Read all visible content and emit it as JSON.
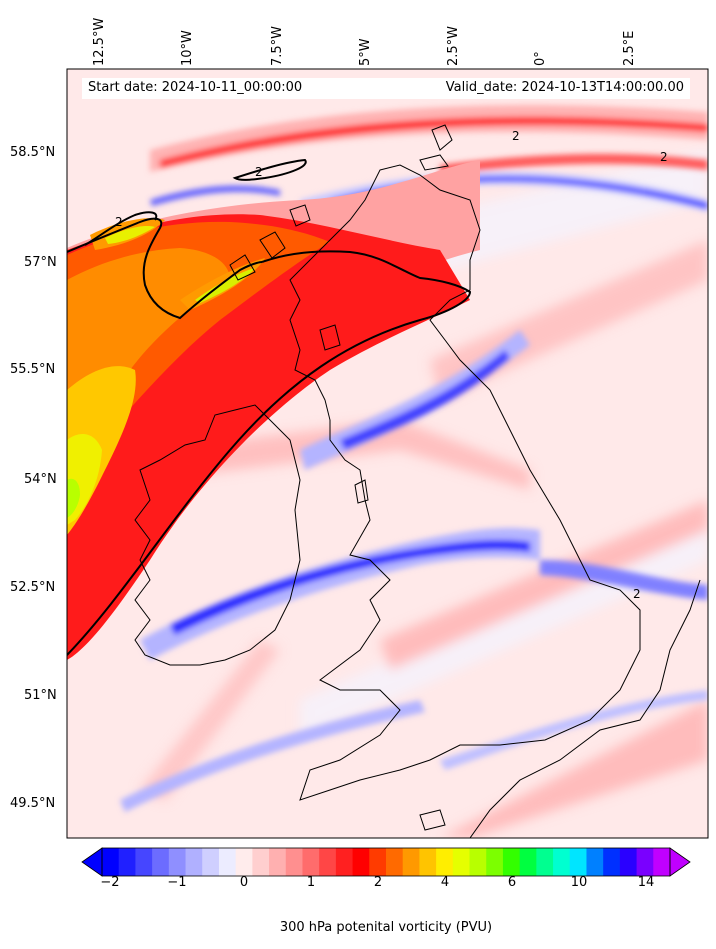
{
  "figure": {
    "start_label": "Start date: 2024-10-11_00:00:00",
    "valid_label": "Valid_date: 2024-10-13T14:00:00.00"
  },
  "map": {
    "region": "British Isles",
    "variable": "300 hPa potential vorticity",
    "latitude_labels": [
      "58.5°N",
      "57°N",
      "55.5°N",
      "54°N",
      "52.5°N",
      "51°N",
      "49.5°N"
    ],
    "longitude_labels": [
      "12.5°W",
      "10°W",
      "7.5°W",
      "5°W",
      "2.5°W",
      "0°",
      "2.5°E"
    ],
    "contour_label": "2",
    "colors": {
      "coast": "#000000",
      "contour": "#000000",
      "background_field": "#ffe9e9"
    }
  },
  "colorbar": {
    "title": "300 hPa potenital vorticity (PVU)",
    "tick_labels": [
      "−2",
      "−1",
      "0",
      "1",
      "2",
      "4",
      "6",
      "10",
      "14"
    ],
    "colors": [
      "#0000ff",
      "#2020ff",
      "#4646ff",
      "#6c6cff",
      "#8f8fff",
      "#b0b0ff",
      "#cfcfff",
      "#ececff",
      "#ffecec",
      "#ffcfcf",
      "#ffb0b0",
      "#ff8f8f",
      "#ff6c6c",
      "#ff4646",
      "#ff2020",
      "#ff0000",
      "#ff3b00",
      "#ff6a00",
      "#ff9900",
      "#ffc400",
      "#ffee00",
      "#e5ff00",
      "#b8ff00",
      "#7cff00",
      "#33ff00",
      "#00ff40",
      "#00ff90",
      "#00ffd0",
      "#00e5ff",
      "#0080ff",
      "#0030ff",
      "#2a00ff",
      "#7a00ff",
      "#c000ff"
    ]
  }
}
